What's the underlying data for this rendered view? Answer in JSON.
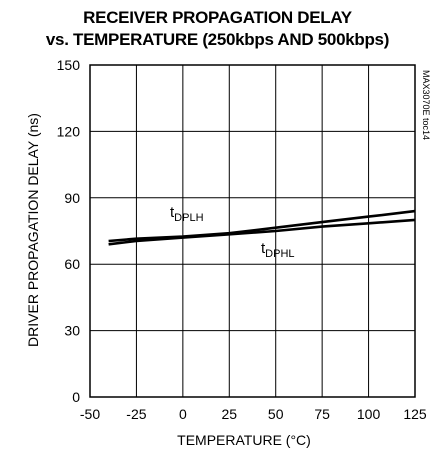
{
  "chart_data": {
    "type": "line",
    "title": "RECEIVER PROPAGATION DELAY",
    "subtitle": "vs. TEMPERATURE (250kbps AND 500kbps)",
    "xlabel": "TEMPERATURE (°C)",
    "ylabel": "DRIVER PROPAGATION DELAY (ns)",
    "xlim": [
      -50,
      125
    ],
    "ylim": [
      0,
      150
    ],
    "xticks": [
      -50,
      -25,
      0,
      25,
      50,
      75,
      100,
      125
    ],
    "yticks": [
      0,
      30,
      60,
      90,
      120,
      150
    ],
    "grid": true,
    "side_label": "MAX3070E toc14",
    "series": [
      {
        "name": "tDPLH",
        "annotation_main": "t",
        "annotation_sub": "DPLH",
        "color": "#000000",
        "x": [
          -40,
          -25,
          0,
          25,
          50,
          75,
          100,
          125
        ],
        "y": [
          70.5,
          71.5,
          72.5,
          74,
          76.5,
          79,
          81.5,
          84
        ]
      },
      {
        "name": "tDPHL",
        "annotation_main": "t",
        "annotation_sub": "DPHL",
        "color": "#000000",
        "x": [
          -40,
          -25,
          0,
          25,
          50,
          75,
          100,
          125
        ],
        "y": [
          69,
          70.5,
          72,
          73.5,
          75,
          77,
          78.5,
          80
        ]
      }
    ]
  }
}
